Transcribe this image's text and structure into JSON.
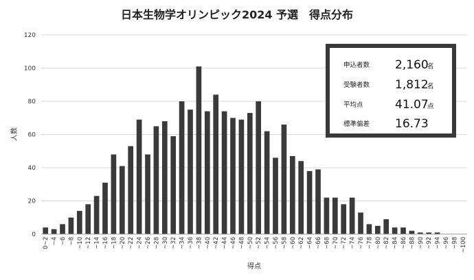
{
  "chart_data": {
    "type": "bar",
    "title": "日本生物学オリンピック2024 予選　得点分布",
    "xlabel": "得点",
    "ylabel": "人数",
    "ylim": [
      0,
      120
    ],
    "yticks": [
      "0",
      "20",
      "40",
      "60",
      "80",
      "100",
      "120"
    ],
    "grid": true,
    "categories": [
      "0~2",
      "~4",
      "~6",
      "~8",
      "~10",
      "~12",
      "~14",
      "~16",
      "~18",
      "~20",
      "~22",
      "~24",
      "~26",
      "~28",
      "~30",
      "~32",
      "~34",
      "~36",
      "~38",
      "~40",
      "~42",
      "~44",
      "~46",
      "~48",
      "~50",
      "~52",
      "~54",
      "~56",
      "~58",
      "~60",
      "~62",
      "~64",
      "~66",
      "~68",
      "~70",
      "~72",
      "~74",
      "~76",
      "~78",
      "~80",
      "~82",
      "~84",
      "~86",
      "~88",
      "~90",
      "~92",
      "~94",
      "~96",
      "~98",
      "~100"
    ],
    "values": [
      4,
      3,
      6,
      10,
      14,
      18,
      23,
      31,
      48,
      41,
      53,
      69,
      48,
      65,
      68,
      59,
      80,
      75,
      101,
      74,
      84,
      74,
      70,
      69,
      73,
      80,
      62,
      46,
      66,
      47,
      44,
      38,
      39,
      22,
      22,
      18,
      22,
      13,
      6,
      5,
      9,
      4,
      4,
      2,
      1,
      1,
      1,
      0,
      0,
      0
    ],
    "bar_color": "#3a3a3a"
  },
  "stats": {
    "border_color": "#3a3a3a",
    "items": [
      {
        "label": "申込者数",
        "value": "2,160",
        "unit": "名"
      },
      {
        "label": "受験者数",
        "value": "1,812",
        "unit": "名"
      },
      {
        "label": "平均点",
        "value": "41.07",
        "unit": "点"
      },
      {
        "label": "標準偏差",
        "value": "16.73",
        "unit": ""
      }
    ]
  }
}
